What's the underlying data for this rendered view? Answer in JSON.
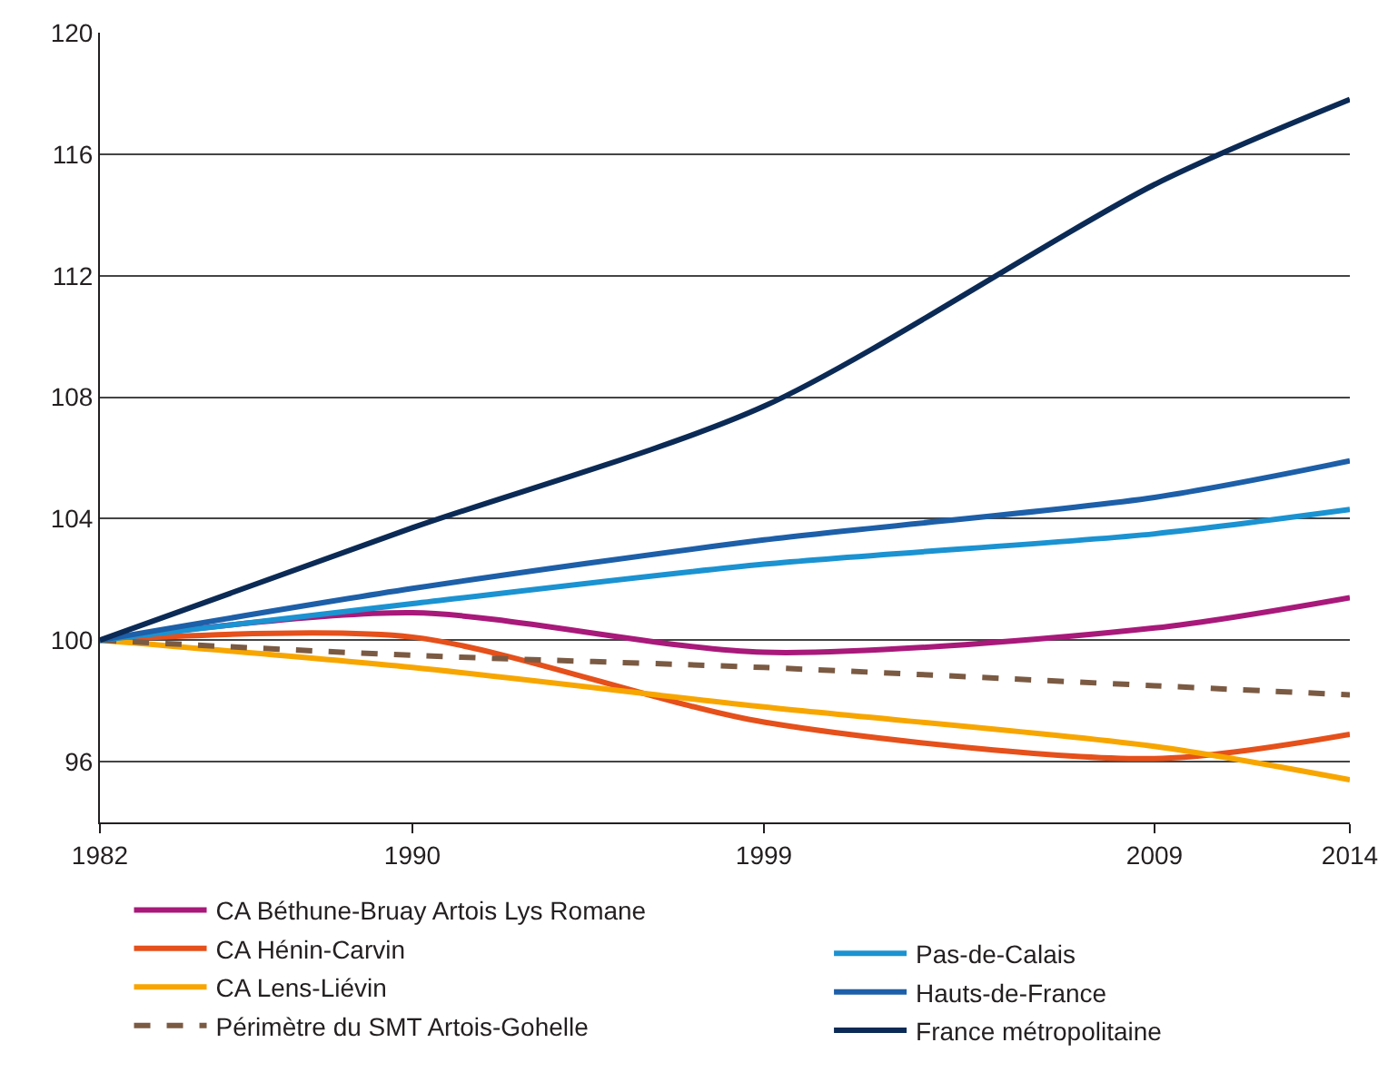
{
  "chart_data": {
    "type": "line",
    "x": [
      1982,
      1990,
      1999,
      2009,
      2014
    ],
    "series": [
      {
        "name": "CA Béthune-Bruay Artois Lys Romane",
        "color": "#a8197a",
        "values": [
          100,
          100.9,
          99.6,
          100.4,
          101.4
        ]
      },
      {
        "name": "CA Hénin-Carvin",
        "color": "#e5501b",
        "values": [
          100,
          100.1,
          97.3,
          96.1,
          96.9
        ]
      },
      {
        "name": "CA Lens-Liévin",
        "color": "#f7a600",
        "values": [
          100,
          99.1,
          97.8,
          96.5,
          95.4
        ]
      },
      {
        "name": "Périmètre du SMT Artois-Gohelle",
        "color": "#7b5a43",
        "line_style": "dashed",
        "values": [
          100,
          99.5,
          99.1,
          98.5,
          98.2
        ]
      },
      {
        "name": "Pas-de-Calais",
        "color": "#1b92d1",
        "values": [
          100,
          101.2,
          102.5,
          103.5,
          104.3
        ]
      },
      {
        "name": "Hauts-de-France",
        "color": "#1d5fa8",
        "values": [
          100,
          101.7,
          103.3,
          104.7,
          105.9
        ]
      },
      {
        "name": "France métropolitaine",
        "color": "#0b2a55",
        "values": [
          100,
          103.7,
          107.7,
          115,
          117.8
        ]
      }
    ],
    "xlim": [
      1982,
      2014
    ],
    "xticks": [
      1982,
      1990,
      1999,
      2009,
      2014
    ],
    "ylim": [
      94,
      120
    ],
    "yticks": [
      96,
      100,
      104,
      108,
      112,
      116,
      120
    ],
    "grid": "y",
    "legend": "bottom",
    "marker": "none",
    "line_style": "solid"
  }
}
